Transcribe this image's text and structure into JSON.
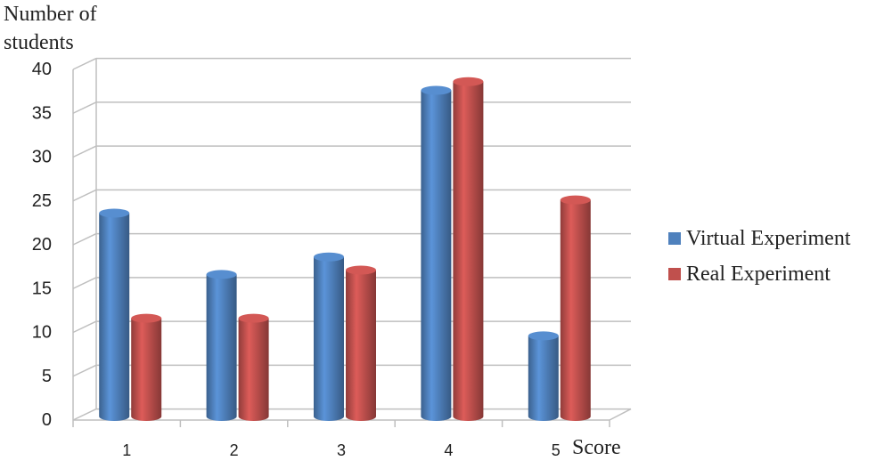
{
  "chart_data": {
    "type": "bar",
    "ylabel": [
      "Number of",
      "students"
    ],
    "xlabel": "Score",
    "categories": [
      "1",
      "2",
      "3",
      "4",
      "5"
    ],
    "ylim": [
      0,
      40
    ],
    "yticks": [
      "0",
      "5",
      "10",
      "15",
      "20",
      "25",
      "30",
      "35",
      "40"
    ],
    "grid": true,
    "legend_position": "right",
    "series": [
      {
        "name": "Virtual Experiment",
        "values": [
          23,
          16,
          18,
          37,
          9
        ],
        "color": "#4f81bd"
      },
      {
        "name": "Real Experiment",
        "values": [
          11,
          11,
          16.5,
          38,
          24.5
        ],
        "color": "#c0504d"
      }
    ]
  }
}
